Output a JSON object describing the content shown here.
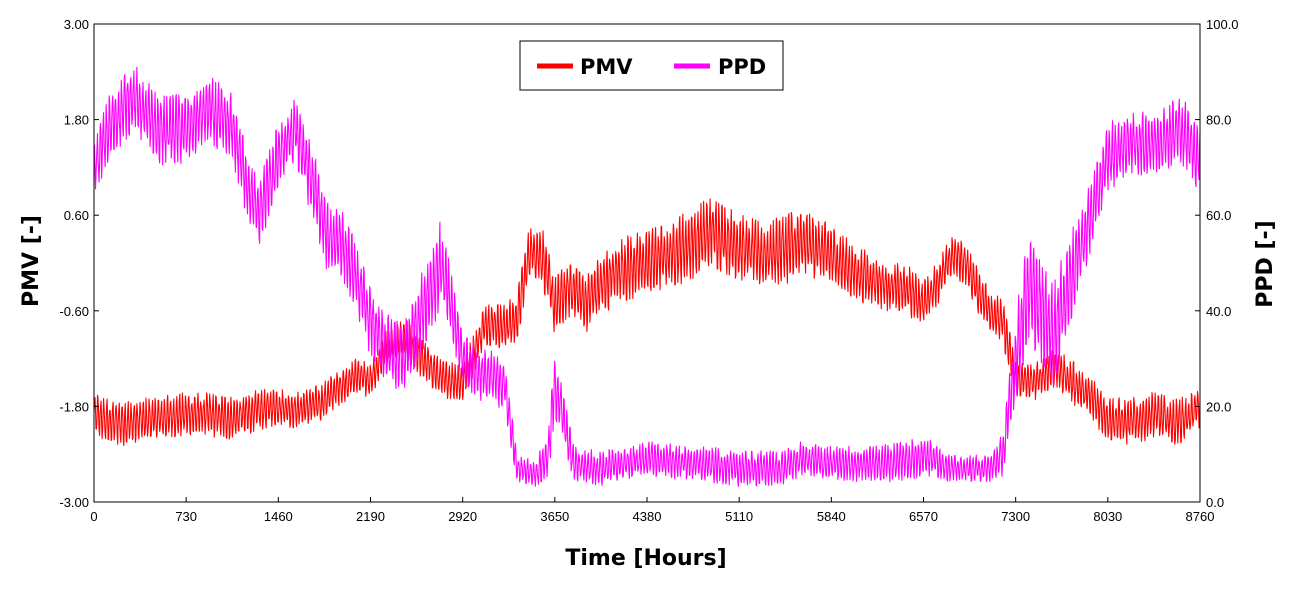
{
  "chart_data": {
    "type": "line",
    "xlabel": "Time [Hours]",
    "ylabel_left": "PMV [-]",
    "ylabel_right": "PPD [-]",
    "xlim": [
      0,
      8760
    ],
    "ylim_left": [
      -3.0,
      3.0
    ],
    "ylim_right": [
      0,
      100
    ],
    "x_ticks": [
      "0",
      "730",
      "1460",
      "2190",
      "2920",
      "3650",
      "4380",
      "5110",
      "5840",
      "6570",
      "7300",
      "8030",
      "8760"
    ],
    "y_left_ticks": [
      "3.00",
      "1.80",
      "0.60",
      "-0.60",
      "-1.80",
      "-3.00"
    ],
    "y_right_ticks": [
      "100.0",
      "80.0",
      "60.0",
      "40.0",
      "20.0",
      "0.0"
    ],
    "legend": {
      "position": "top-center",
      "entries": [
        "PMV",
        "PPD"
      ]
    },
    "colors": {
      "PMV": "#ff0000",
      "PPD": "#ff00ff"
    },
    "series": [
      {
        "name": "PMV",
        "axis": "left",
        "color": "#ff0000",
        "x": [
          0,
          120,
          300,
          500,
          730,
          900,
          1100,
          1300,
          1460,
          1600,
          1800,
          1950,
          2100,
          2190,
          2300,
          2450,
          2600,
          2750,
          2920,
          3100,
          3250,
          3350,
          3450,
          3550,
          3650,
          3780,
          3900,
          4000,
          4150,
          4380,
          4550,
          4750,
          4900,
          5110,
          5300,
          5500,
          5650,
          5840,
          6000,
          6150,
          6300,
          6450,
          6570,
          6700,
          6800,
          6900,
          7000,
          7100,
          7200,
          7300,
          7450,
          7600,
          7750,
          7900,
          8030,
          8200,
          8400,
          8550,
          8650,
          8760
        ],
        "mid": [
          -1.9,
          -2.0,
          -2.0,
          -1.95,
          -1.9,
          -1.9,
          -1.95,
          -1.85,
          -1.8,
          -1.85,
          -1.75,
          -1.55,
          -1.4,
          -1.5,
          -1.1,
          -0.95,
          -1.2,
          -1.45,
          -1.5,
          -0.75,
          -0.8,
          -0.7,
          0.15,
          0.1,
          -0.55,
          -0.3,
          -0.5,
          -0.3,
          -0.1,
          0.0,
          0.1,
          0.25,
          0.4,
          0.2,
          0.1,
          0.2,
          0.25,
          0.1,
          -0.1,
          -0.2,
          -0.3,
          -0.35,
          -0.5,
          -0.2,
          0.1,
          0.0,
          -0.35,
          -0.6,
          -0.75,
          -1.45,
          -1.5,
          -1.3,
          -1.5,
          -1.7,
          -1.95,
          -2.0,
          -1.9,
          -2.0,
          -1.95,
          -1.8
        ],
        "amp": [
          0.3,
          0.32,
          0.32,
          0.3,
          0.3,
          0.3,
          0.3,
          0.28,
          0.25,
          0.25,
          0.25,
          0.25,
          0.25,
          0.25,
          0.3,
          0.3,
          0.28,
          0.25,
          0.28,
          0.3,
          0.3,
          0.35,
          0.35,
          0.4,
          0.4,
          0.4,
          0.4,
          0.4,
          0.45,
          0.45,
          0.45,
          0.5,
          0.5,
          0.45,
          0.45,
          0.5,
          0.45,
          0.4,
          0.4,
          0.35,
          0.35,
          0.35,
          0.3,
          0.3,
          0.3,
          0.3,
          0.3,
          0.3,
          0.3,
          0.25,
          0.25,
          0.28,
          0.3,
          0.3,
          0.3,
          0.32,
          0.32,
          0.32,
          0.3,
          0.3
        ]
      },
      {
        "name": "PPD",
        "axis": "right",
        "color": "#ff00ff",
        "x": [
          0,
          120,
          300,
          500,
          730,
          900,
          1100,
          1200,
          1300,
          1460,
          1600,
          1750,
          1850,
          1950,
          2100,
          2190,
          2300,
          2450,
          2600,
          2750,
          2920,
          3050,
          3250,
          3350,
          3500,
          3600,
          3650,
          3800,
          4000,
          4380,
          4800,
          5110,
          5450,
          5600,
          5840,
          6200,
          6500,
          6570,
          6800,
          7000,
          7100,
          7200,
          7300,
          7400,
          7500,
          7600,
          7750,
          7900,
          8030,
          8200,
          8400,
          8600,
          8760
        ],
        "mid": [
          70,
          78,
          85,
          78,
          78,
          82,
          78,
          68,
          60,
          72,
          78,
          65,
          55,
          55,
          45,
          38,
          32,
          30,
          40,
          50,
          30,
          27,
          25,
          7,
          6,
          10,
          25,
          8,
          7,
          9,
          8,
          7,
          7,
          9,
          8,
          8,
          9,
          10,
          7,
          7,
          7,
          10,
          30,
          45,
          40,
          35,
          48,
          60,
          72,
          75,
          75,
          78,
          72
        ],
        "amp": [
          6,
          8,
          8,
          8,
          8,
          8,
          8,
          8,
          8,
          8,
          8,
          8,
          8,
          8,
          8,
          8,
          8,
          8,
          9,
          10,
          6,
          6,
          6,
          3,
          3,
          6,
          8,
          4,
          4,
          4,
          4,
          4,
          4,
          4,
          4,
          4,
          5,
          5,
          3,
          3,
          3,
          5,
          10,
          12,
          12,
          12,
          10,
          8,
          8,
          7,
          7,
          8,
          8
        ]
      }
    ]
  }
}
